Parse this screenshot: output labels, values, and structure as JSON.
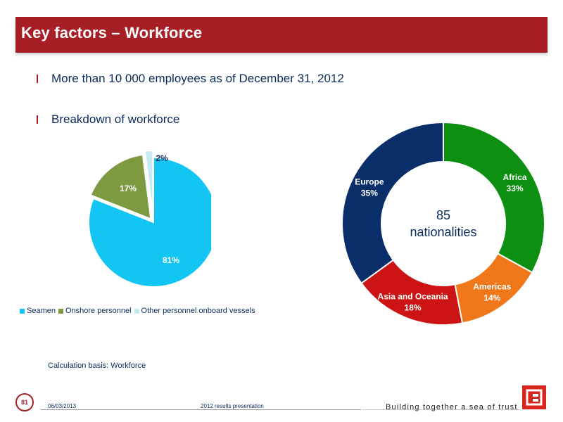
{
  "title": "Key factors – Workforce",
  "bullets": [
    "More than 10 000 employees as of December 31, 2012",
    "Breakdown of workforce"
  ],
  "note": "Calculation basis: Workforce",
  "footer": {
    "page_number": "81",
    "date": "06/03/2013",
    "center": "2012 results presentation",
    "slogan": "Building together a sea of trust"
  },
  "colors": {
    "brand_red": "#a51f25",
    "logo_red": "#d7261e",
    "text_navy": "#0a2a5a"
  },
  "chart_data": [
    {
      "type": "pie",
      "slices": [
        {
          "name": "Seamen",
          "value": 81,
          "label": "81%",
          "color": "#12c5f3"
        },
        {
          "name": "Onshore personnel",
          "value": 17,
          "label": "17%",
          "color": "#7e9a40"
        },
        {
          "name": "Other personnel onboard vessels",
          "value": 2,
          "label": "2%",
          "color": "#c6e9f3"
        }
      ],
      "legend": "bottom"
    },
    {
      "type": "pie",
      "variant": "donut",
      "center_text": [
        "85",
        "nationalities"
      ],
      "slices": [
        {
          "name": "Africa",
          "value": 33,
          "label": "33%",
          "color": "#0d8f11"
        },
        {
          "name": "Americas",
          "value": 14,
          "label": "14%",
          "color": "#f0781a"
        },
        {
          "name": "Asia and Oceania",
          "value": 18,
          "label": "18%",
          "color": "#cc1414"
        },
        {
          "name": "Europe",
          "value": 35,
          "label": "35%",
          "color": "#0a2e6a"
        }
      ]
    }
  ]
}
